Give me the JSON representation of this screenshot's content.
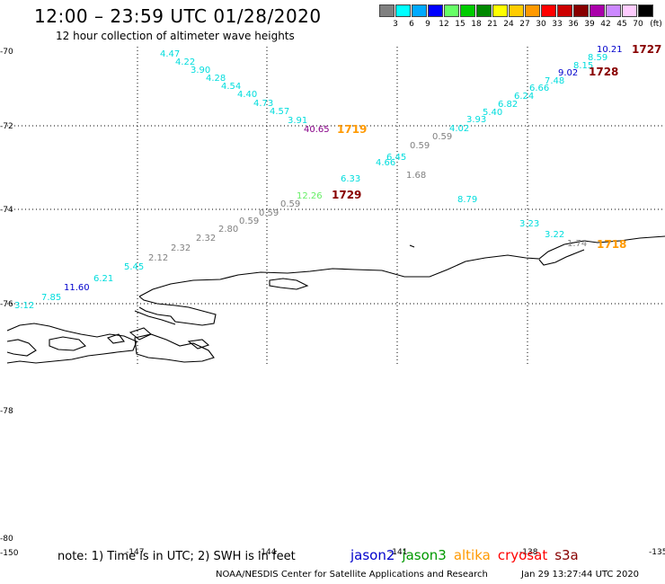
{
  "header": {
    "title": "12:00 – 23:59 UTC 01/28/2020",
    "subtitle": "12 hour collection of altimeter wave heights"
  },
  "color_scale": {
    "unit": "(ft)",
    "bins": [
      {
        "label": "3",
        "color": "#808080"
      },
      {
        "label": "6",
        "color": "#00ffff"
      },
      {
        "label": "9",
        "color": "#00aaff"
      },
      {
        "label": "12",
        "color": "#0000ff"
      },
      {
        "label": "15",
        "color": "#66ff66"
      },
      {
        "label": "18",
        "color": "#00cc00"
      },
      {
        "label": "21",
        "color": "#008800"
      },
      {
        "label": "24",
        "color": "#ffff00"
      },
      {
        "label": "27",
        "color": "#ffcc00"
      },
      {
        "label": "30",
        "color": "#ff9900"
      },
      {
        "label": "33",
        "color": "#ff0000"
      },
      {
        "label": "36",
        "color": "#cc0000"
      },
      {
        "label": "39",
        "color": "#880000"
      },
      {
        "label": "42",
        "color": "#aa00aa"
      },
      {
        "label": "45",
        "color": "#cc88ff"
      },
      {
        "label": "70",
        "color": "#ffccff"
      },
      {
        "label": "",
        "color": "#000000"
      }
    ]
  },
  "axes": {
    "lat_labels": [
      "-70",
      "-72",
      "-74",
      "-76",
      "-78",
      "-80"
    ],
    "lon_labels": [
      "-150",
      "-147",
      "-144",
      "-141",
      "-138",
      "-135"
    ]
  },
  "wave_heights": [
    {
      "v": "4.47",
      "c": "#00dddd"
    },
    {
      "v": "4.22",
      "c": "#00dddd"
    },
    {
      "v": "3.90",
      "c": "#00dddd"
    },
    {
      "v": "4.28",
      "c": "#00dddd"
    },
    {
      "v": "4.54",
      "c": "#00dddd"
    },
    {
      "v": "4.40",
      "c": "#00dddd"
    },
    {
      "v": "4.73",
      "c": "#00dddd"
    },
    {
      "v": "4.57",
      "c": "#00dddd"
    },
    {
      "v": "3.91",
      "c": "#00dddd"
    },
    {
      "v": "40.65",
      "c": "#880088"
    },
    {
      "v": "12.26",
      "c": "#66ee66"
    },
    {
      "v": "0.59",
      "c": "#808080"
    },
    {
      "v": "0.59",
      "c": "#808080"
    },
    {
      "v": "0.59",
      "c": "#808080"
    },
    {
      "v": "2.80",
      "c": "#808080"
    },
    {
      "v": "2.32",
      "c": "#808080"
    },
    {
      "v": "2.32",
      "c": "#808080"
    },
    {
      "v": "2.12",
      "c": "#808080"
    },
    {
      "v": "5.45",
      "c": "#00dddd"
    },
    {
      "v": "6.21",
      "c": "#00dddd"
    },
    {
      "v": "11.60",
      "c": "#0000cc"
    },
    {
      "v": "7.85",
      "c": "#00dddd"
    },
    {
      "v": "3.12",
      "c": "#00dddd"
    },
    {
      "v": "10.21",
      "c": "#0000cc"
    },
    {
      "v": "8.59",
      "c": "#00dddd"
    },
    {
      "v": "8.15",
      "c": "#00dddd"
    },
    {
      "v": "9.02",
      "c": "#0000cc"
    },
    {
      "v": "7.48",
      "c": "#00dddd"
    },
    {
      "v": "6.66",
      "c": "#00dddd"
    },
    {
      "v": "6.24",
      "c": "#00dddd"
    },
    {
      "v": "6.82",
      "c": "#00dddd"
    },
    {
      "v": "5.40",
      "c": "#00dddd"
    },
    {
      "v": "3.93",
      "c": "#00dddd"
    },
    {
      "v": "4.02",
      "c": "#00dddd"
    },
    {
      "v": "0.59",
      "c": "#808080"
    },
    {
      "v": "0.59",
      "c": "#808080"
    },
    {
      "v": "6.45",
      "c": "#00dddd"
    },
    {
      "v": "4.66",
      "c": "#00dddd"
    },
    {
      "v": "1.68",
      "c": "#808080"
    },
    {
      "v": "6.33",
      "c": "#00dddd"
    },
    {
      "v": "8.79",
      "c": "#00dddd"
    },
    {
      "v": "3.23",
      "c": "#00dddd"
    },
    {
      "v": "3.22",
      "c": "#00dddd"
    },
    {
      "v": "1.74",
      "c": "#808080"
    }
  ],
  "pass_times": [
    {
      "v": "1727",
      "c": "#880000"
    },
    {
      "v": "1728",
      "c": "#880000"
    },
    {
      "v": "1719",
      "c": "#ff9900"
    },
    {
      "v": "1729",
      "c": "#880000"
    },
    {
      "v": "1718",
      "c": "#ff9900"
    }
  ],
  "footer": {
    "note": "note: 1) Time is in UTC; 2) SWH is in feet",
    "satellites": [
      {
        "name": "jason2",
        "color": "#0000cc"
      },
      {
        "name": "jason3",
        "color": "#009900"
      },
      {
        "name": "altika",
        "color": "#ff9900"
      },
      {
        "name": "cryosat",
        "color": "#ff0000"
      },
      {
        "name": "s3a",
        "color": "#880000"
      }
    ],
    "credit": "NOAA/NESDIS Center for Satellite Applications and Research",
    "date": "Jan 29 13:27:44 UTC 2020"
  }
}
